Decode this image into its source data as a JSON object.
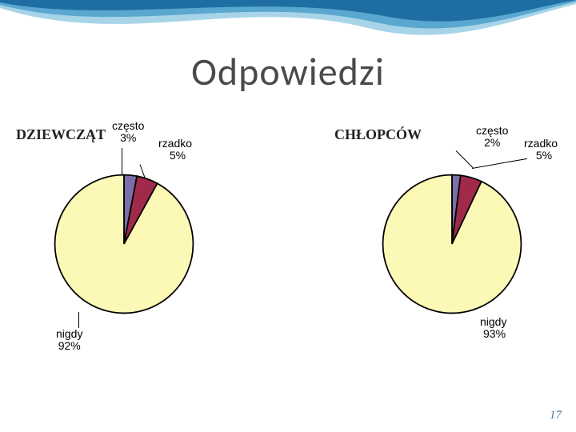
{
  "title": "Odpowiedzi",
  "page_number": "17",
  "decor": {
    "background": "#ffffff",
    "wave_colors": [
      "#1f6ea3",
      "#5aa7cf",
      "#a7d4e8"
    ]
  },
  "charts": {
    "girls": {
      "heading": "DZIEWCZĄT",
      "type": "pie",
      "start_angle_deg": -90,
      "outline_color": "#000000",
      "outline_width": 1,
      "slices": [
        {
          "label": "często",
          "pct_text": "3%",
          "value": 3,
          "color": "#7a6fa8"
        },
        {
          "label": "rzadko",
          "pct_text": "5%",
          "value": 5,
          "color": "#a12a4a"
        },
        {
          "label": "nigdy",
          "pct_text": "92%",
          "value": 92,
          "color": "#fcf9b7"
        }
      ],
      "label_fontsize": 14
    },
    "boys": {
      "heading": "CHŁOPCÓW",
      "type": "pie",
      "start_angle_deg": -90,
      "outline_color": "#000000",
      "outline_width": 1,
      "slices": [
        {
          "label": "często",
          "pct_text": "2%",
          "value": 2,
          "color": "#7a6fa8"
        },
        {
          "label": "rzadko",
          "pct_text": "5%",
          "value": 5,
          "color": "#a12a4a"
        },
        {
          "label": "nigdy",
          "pct_text": "93%",
          "value": 93,
          "color": "#fcf9b7"
        }
      ],
      "label_fontsize": 14
    }
  }
}
